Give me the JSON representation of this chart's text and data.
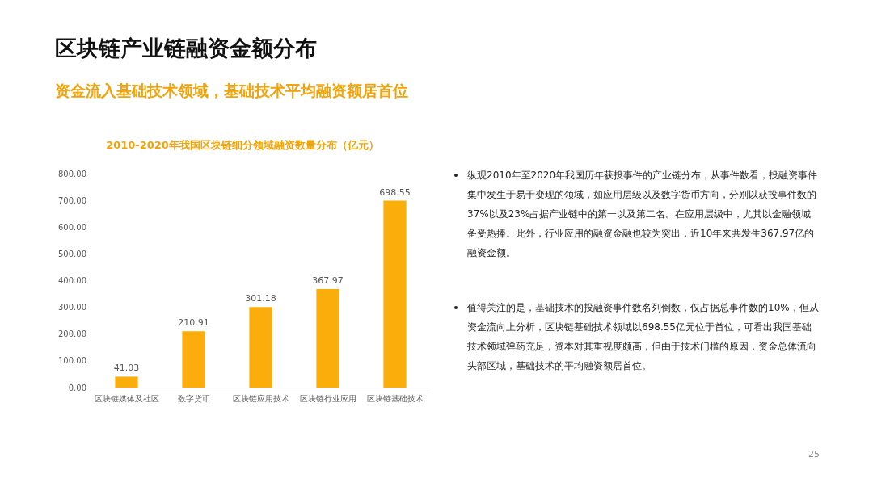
{
  "chart_data": {
    "type": "bar",
    "title": "区块链产业链融资金额分布",
    "subtitle": "资金流入基础技术领域，基础技术平均融资额居首位",
    "categories": [
      "区块链媒体及社区",
      "数字货币",
      "区块链应用技术",
      "区块链行业应用",
      "区块链基础技术"
    ],
    "values": [
      41.03,
      210.91,
      301.18,
      367.97,
      698.55
    ],
    "color": "#fbad0c",
    "ylim": [
      0,
      800
    ],
    "yticks": [
      {
        "value": 0,
        "label": "0.00"
      },
      {
        "value": 100,
        "label": "100.00"
      },
      {
        "value": 200,
        "label": "200.00"
      },
      {
        "value": 300,
        "label": "300.00"
      },
      {
        "value": 400,
        "label": "400.00"
      },
      {
        "value": 500,
        "label": "500.00"
      },
      {
        "value": 600,
        "label": "600.00"
      },
      {
        "value": 700,
        "label": "700.00"
      },
      {
        "value": 800,
        "label": "800.00"
      }
    ],
    "grid": false,
    "data_labels": true,
    "annotations": [
      "2010-2020年我国区块链细分领域融资数量分布（亿元）",
      "纵观2010年至2020年我国历年获投事件的产业链分布，从事件数看，投融资事件集中发生于易于变现的领域，如应用层级以及数字货币方向，分别以获投事件数的37%以及23%占据产业链中的第一以及第二名。在应用层级中，尤其以金融领域备受热捧。此外，行业应用的融资金融也较为突出，近10年来共发生367.97亿的融资金额。",
      "值得关注的是，基础技术的投融资事件数名列倒数，仅占据总事件数的10%，但从资金流向上分析，区块链基础技术领域以698.55亿元位于首位，可看出我国基础技术领域弹药充足，资本对其重视度颇高，但由于技术门槛的原因，资金总体流向头部区域，基础技术的平均融资额居首位。",
      "25"
    ]
  }
}
